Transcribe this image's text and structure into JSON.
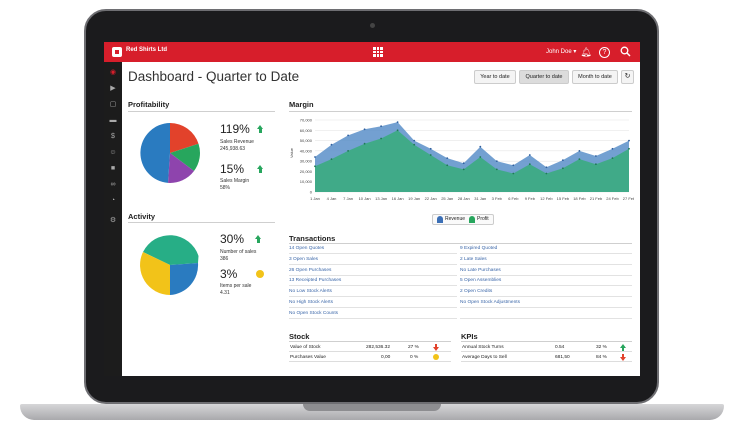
{
  "app": {
    "org_name": "Red Shirts Ltd",
    "user_name": "John Doe ▾"
  },
  "page": {
    "title": "Dashboard - Quarter to Date",
    "period_buttons": [
      "Year to date",
      "Quarter to date",
      "Month to date"
    ],
    "active_period": "Quarter to date"
  },
  "profitability": {
    "heading": "Profitability",
    "sales_revenue_pct": "119%",
    "sales_revenue_label": "Sales Revenue",
    "sales_revenue_value": "245,938.63",
    "sales_margin_pct": "15%",
    "sales_margin_label": "Sales Margin",
    "sales_margin_value": "58%",
    "pie_colors": [
      "#e2422b",
      "#27a65d",
      "#8e44ad",
      "#2a7bc0"
    ]
  },
  "activity": {
    "heading": "Activity",
    "sales_pct": "30%",
    "sales_label": "Number of sales",
    "sales_value": "386",
    "items_pct": "3%",
    "items_label": "Items per sale",
    "items_value": "4.31",
    "pie_colors": [
      "#27ae86",
      "#2a7bc0",
      "#f2c319"
    ]
  },
  "margin": {
    "heading": "Margin",
    "ylabel": "Value",
    "legend_revenue": "Revenue",
    "legend_profit": "Profit"
  },
  "chart_data": {
    "type": "area",
    "title": "Margin",
    "xlabel": "",
    "ylabel": "Value",
    "ylim": [
      0,
      70000
    ],
    "yticks": [
      "70,000",
      "60,000",
      "50,000",
      "40,000",
      "30,000",
      "20,000",
      "10,000",
      "0"
    ],
    "x": [
      "1 Jan",
      "4 Jan",
      "7 Jan",
      "10 Jan",
      "13 Jan",
      "16 Jan",
      "19 Jan",
      "22 Jan",
      "25 Jan",
      "28 Jan",
      "31 Jan",
      "3 Feb",
      "6 Feb",
      "9 Feb",
      "12 Feb",
      "15 Feb",
      "18 Feb",
      "21 Feb",
      "24 Feb",
      "27 Feb"
    ],
    "series": [
      {
        "name": "Revenue",
        "color": "#5b8fc9",
        "values": [
          34000,
          46000,
          55000,
          61000,
          64000,
          68000,
          50000,
          42000,
          33000,
          28000,
          44000,
          30000,
          26000,
          36000,
          24000,
          31000,
          40000,
          35000,
          42000,
          50000
        ]
      },
      {
        "name": "Profit",
        "color": "#3dab84",
        "values": [
          25000,
          32000,
          40000,
          47000,
          52000,
          60000,
          46000,
          36000,
          26000,
          22000,
          34000,
          22000,
          18000,
          27000,
          18000,
          23000,
          32000,
          27000,
          33000,
          42000
        ]
      }
    ],
    "grid": true,
    "legend": "bottom-center"
  },
  "transactions": {
    "heading": "Transactions",
    "left": [
      "14 Open Quotes",
      "3 Open Sales",
      "26 Open Purchases",
      "13 Receipted Purchases",
      "No Low Stock Alerts",
      "No High Stock Alerts",
      "No Open Stock Counts"
    ],
    "right": [
      "9 Expired Quoted",
      "2 Late Sales",
      "No Late Purchases",
      "5 Open Assemblies",
      "2 Open Credits",
      "No Open Stock Adjustments"
    ]
  },
  "stock": {
    "heading": "Stock",
    "rows": [
      {
        "label": "Value of Stock",
        "value": "282,536.32",
        "pct": "27 %",
        "indicator": "down"
      },
      {
        "label": "Purchases Value",
        "value": "0,00",
        "pct": "0 %",
        "indicator": "neutral"
      }
    ]
  },
  "kpis": {
    "heading": "KPIs",
    "rows": [
      {
        "label": "Annual Stock Turns",
        "value": "0.54",
        "pct": "32 %",
        "indicator": "up"
      },
      {
        "label": "Average Days to Sell",
        "value": "681,50",
        "pct": "84 %",
        "indicator": "down"
      }
    ]
  }
}
